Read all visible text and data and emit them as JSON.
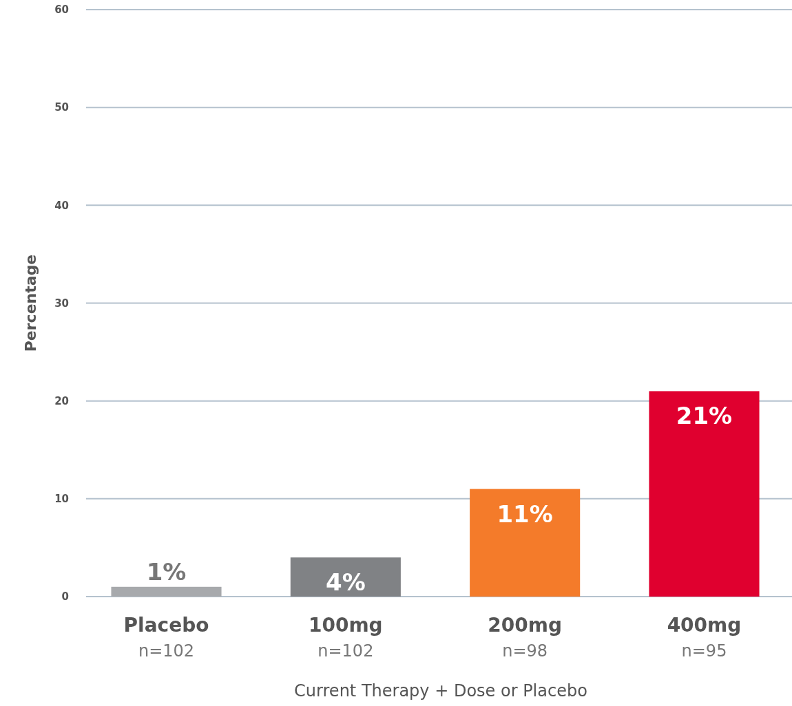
{
  "chart_data": {
    "type": "bar",
    "xlabel": "Current Therapy + Dose or Placebo",
    "ylabel": "Percentage",
    "categories": [
      "Placebo\nn=102",
      "100mg\nn=102",
      "200mg\nn=98",
      "400mg\nn=95"
    ],
    "values": [
      1,
      4,
      11,
      21
    ],
    "colors": [
      "#a7a9ac",
      "#808285",
      "#f47b2a",
      "#e0002f"
    ],
    "value_labels": [
      "1%",
      "4%",
      "11%",
      "21%"
    ],
    "ylim": [
      0,
      60
    ],
    "yticks": [
      0,
      10,
      20,
      30,
      40,
      50,
      60
    ],
    "grid": "y"
  }
}
